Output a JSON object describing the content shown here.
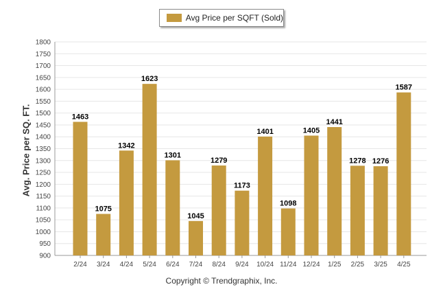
{
  "chart_data": {
    "type": "bar",
    "legend": {
      "label": "Avg Price per SQFT (Sold)",
      "position": "top-center"
    },
    "ylabel": "Avg. Price per SQ. FT.",
    "xlabel": "",
    "ylim": [
      900,
      1800
    ],
    "yticks": [
      900,
      950,
      1000,
      1050,
      1100,
      1150,
      1200,
      1250,
      1300,
      1350,
      1400,
      1450,
      1500,
      1550,
      1600,
      1650,
      1700,
      1750,
      1800
    ],
    "grid": true,
    "categories": [
      "2/24",
      "3/24",
      "4/24",
      "5/24",
      "6/24",
      "7/24",
      "8/24",
      "9/24",
      "10/24",
      "11/24",
      "12/24",
      "1/25",
      "2/25",
      "3/25",
      "4/25"
    ],
    "series": [
      {
        "name": "Avg Price per SQFT (Sold)",
        "values": [
          1463,
          1075,
          1342,
          1623,
          1301,
          1045,
          1279,
          1173,
          1401,
          1098,
          1405,
          1441,
          1278,
          1276,
          1587
        ]
      }
    ],
    "colors": {
      "bar": "#c49a3f",
      "grid": "#e6e6e6",
      "axis": "#999999"
    }
  },
  "footer": {
    "copyright": "Copyright © Trendgraphix, Inc."
  }
}
